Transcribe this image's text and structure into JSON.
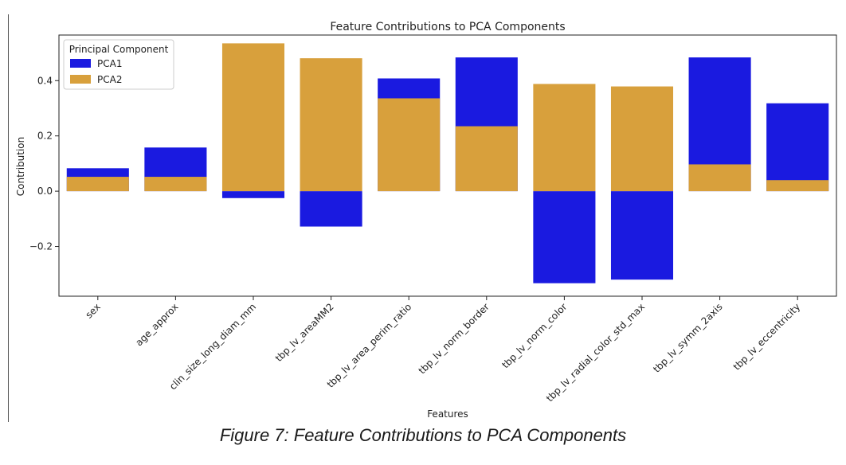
{
  "caption": "Figure 7: Feature Contributions to PCA Components",
  "chart_data": {
    "type": "bar",
    "title": "Feature Contributions to PCA Components",
    "xlabel": "Features",
    "ylabel": "Contribution",
    "ylim": [
      -0.38,
      0.565
    ],
    "yticks": [
      -0.2,
      0.0,
      0.2,
      0.4
    ],
    "ytick_labels": [
      "−0.2",
      "0.0",
      "0.2",
      "0.4"
    ],
    "categories": [
      "sex",
      "age_approx",
      "clin_size_long_diam_mm",
      "tbp_lv_areaMM2",
      "tbp_lv_area_perim_ratio",
      "tbp_lv_norm_border",
      "tbp_lv_norm_color",
      "tbp_lv_radial_color_std_max",
      "tbp_lv_symm_2axis",
      "tbp_lv_eccentricity"
    ],
    "legend": {
      "title": "Principal Component",
      "position": "top-left"
    },
    "grid": false,
    "series": [
      {
        "name": "PCA1",
        "color": "#1a1ae0",
        "values": [
          0.083,
          0.158,
          -0.025,
          -0.128,
          0.408,
          0.484,
          -0.333,
          -0.32,
          0.484,
          0.318
        ]
      },
      {
        "name": "PCA2",
        "color": "#d8a03c",
        "values": [
          0.052,
          0.052,
          0.535,
          0.481,
          0.336,
          0.235,
          0.388,
          0.379,
          0.097,
          0.04
        ]
      }
    ]
  }
}
